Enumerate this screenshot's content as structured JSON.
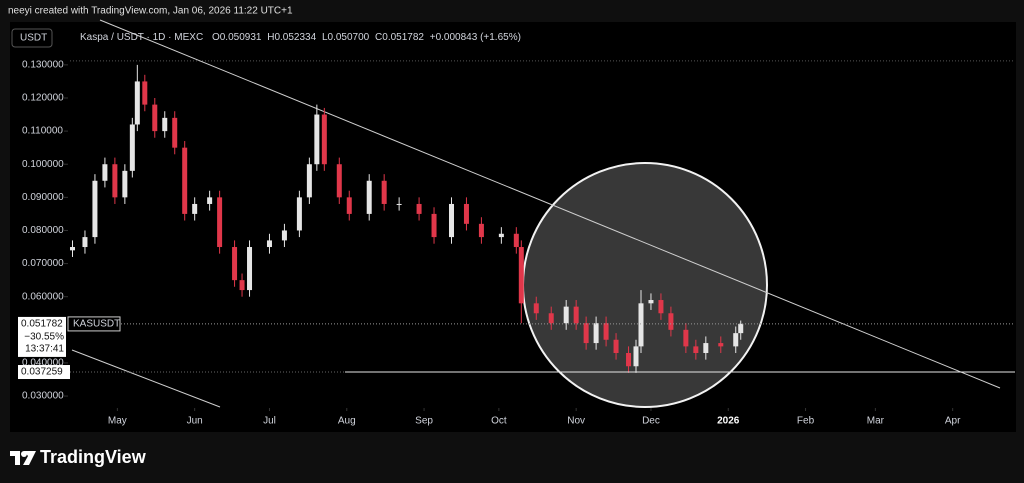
{
  "header": {
    "caption": "neeyi created with TradingView.com, Jan 06, 2026 11:22 UTC+1",
    "currency": "USDT",
    "legend": {
      "symbol": "Kaspa / USDT · 1D · MEXC",
      "open": "O0.050931",
      "high": "H0.052334",
      "low": "L0.050700",
      "close": "C0.051782",
      "change": "+0.000843 (+1.65%)"
    }
  },
  "footer": {
    "brand": "TradingView"
  },
  "chart_data": {
    "type": "candlestick",
    "up_color": "#e6e6e6",
    "down_color": "#e0374a",
    "xlim": [
      -19,
      360
    ],
    "ylim": [
      0.0273,
      0.136
    ],
    "xticks": [
      {
        "value": 0,
        "label": "May"
      },
      {
        "value": 31,
        "label": "Jun"
      },
      {
        "value": 61,
        "label": "Jul"
      },
      {
        "value": 92,
        "label": "Aug"
      },
      {
        "value": 123,
        "label": "Sep"
      },
      {
        "value": 153,
        "label": "Oct"
      },
      {
        "value": 184,
        "label": "Nov"
      },
      {
        "value": 214,
        "label": "Dec"
      },
      {
        "value": 245,
        "label": "2026"
      },
      {
        "value": 276,
        "label": "Feb"
      },
      {
        "value": 304,
        "label": "Mar"
      },
      {
        "value": 335,
        "label": "Apr"
      }
    ],
    "yticks": [
      {
        "value": 0.13,
        "label": "0.130000"
      },
      {
        "value": 0.12,
        "label": "0.120000"
      },
      {
        "value": 0.11,
        "label": "0.110000"
      },
      {
        "value": 0.1,
        "label": "0.100000"
      },
      {
        "value": 0.09,
        "label": "0.090000"
      },
      {
        "value": 0.08,
        "label": "0.080000"
      },
      {
        "value": 0.07,
        "label": "0.070000"
      },
      {
        "value": 0.06,
        "label": "0.060000"
      },
      {
        "value": 0.04,
        "label": "0.040000"
      },
      {
        "value": 0.03,
        "label": "0.030000"
      }
    ],
    "last_price": {
      "value": 0.051782,
      "label": "0.051782",
      "symbol": "KASUSDT",
      "change": "−30.55%",
      "countdown": "13:37:41"
    },
    "support": {
      "value": 0.037259,
      "label": "0.037259"
    },
    "x": [
      -18,
      -13,
      -9,
      -5,
      -1,
      3,
      6,
      8,
      11,
      15,
      19,
      23,
      27,
      31,
      37,
      41,
      47,
      50,
      53,
      61,
      67,
      73,
      77,
      80,
      83,
      89,
      93,
      101,
      107,
      113,
      121,
      127,
      134,
      140,
      146,
      154,
      160,
      162,
      168,
      174,
      180,
      184,
      188,
      192,
      196,
      200,
      205,
      208,
      210,
      214,
      218,
      222,
      228,
      232,
      236,
      242,
      248,
      250
    ],
    "open": [
      0.074,
      0.075,
      0.078,
      0.095,
      0.1,
      0.09,
      0.098,
      0.112,
      0.125,
      0.118,
      0.11,
      0.114,
      0.105,
      0.085,
      0.088,
      0.09,
      0.075,
      0.065,
      0.062,
      0.075,
      0.077,
      0.08,
      0.09,
      0.1,
      0.115,
      0.1,
      0.09,
      0.085,
      0.095,
      0.088,
      0.088,
      0.085,
      0.078,
      0.088,
      0.082,
      0.078,
      0.079,
      0.075,
      0.058,
      0.055,
      0.052,
      0.057,
      0.052,
      0.046,
      0.052,
      0.047,
      0.043,
      0.039,
      0.045,
      0.058,
      0.059,
      0.055,
      0.05,
      0.045,
      0.043,
      0.046,
      0.045,
      0.049
    ],
    "high": [
      0.077,
      0.08,
      0.097,
      0.102,
      0.102,
      0.1,
      0.114,
      0.13,
      0.127,
      0.12,
      0.116,
      0.116,
      0.107,
      0.09,
      0.092,
      0.092,
      0.077,
      0.067,
      0.077,
      0.079,
      0.082,
      0.092,
      0.102,
      0.118,
      0.117,
      0.102,
      0.092,
      0.097,
      0.097,
      0.09,
      0.09,
      0.087,
      0.09,
      0.09,
      0.084,
      0.081,
      0.081,
      0.077,
      0.06,
      0.057,
      0.059,
      0.059,
      0.054,
      0.054,
      0.054,
      0.049,
      0.045,
      0.047,
      0.062,
      0.061,
      0.061,
      0.057,
      0.052,
      0.047,
      0.048,
      0.048,
      0.051,
      0.0528
    ],
    "low": [
      0.072,
      0.073,
      0.076,
      0.093,
      0.088,
      0.088,
      0.096,
      0.11,
      0.116,
      0.108,
      0.108,
      0.103,
      0.083,
      0.083,
      0.086,
      0.073,
      0.063,
      0.06,
      0.06,
      0.073,
      0.075,
      0.078,
      0.088,
      0.098,
      0.098,
      0.088,
      0.083,
      0.083,
      0.086,
      0.086,
      0.083,
      0.076,
      0.076,
      0.08,
      0.076,
      0.076,
      0.073,
      0.052,
      0.053,
      0.05,
      0.05,
      0.05,
      0.044,
      0.044,
      0.045,
      0.041,
      0.037,
      0.037,
      0.043,
      0.056,
      0.053,
      0.048,
      0.043,
      0.041,
      0.041,
      0.043,
      0.043,
      0.047
    ],
    "close": [
      0.075,
      0.078,
      0.095,
      0.1,
      0.09,
      0.098,
      0.112,
      0.125,
      0.118,
      0.11,
      0.114,
      0.105,
      0.085,
      0.088,
      0.09,
      0.075,
      0.065,
      0.062,
      0.075,
      0.077,
      0.08,
      0.09,
      0.1,
      0.115,
      0.1,
      0.09,
      0.085,
      0.095,
      0.088,
      0.088,
      0.085,
      0.078,
      0.088,
      0.082,
      0.078,
      0.079,
      0.075,
      0.058,
      0.055,
      0.052,
      0.057,
      0.052,
      0.046,
      0.052,
      0.047,
      0.043,
      0.039,
      0.045,
      0.058,
      0.059,
      0.055,
      0.05,
      0.045,
      0.043,
      0.046,
      0.045,
      0.049,
      0.0518
    ]
  }
}
